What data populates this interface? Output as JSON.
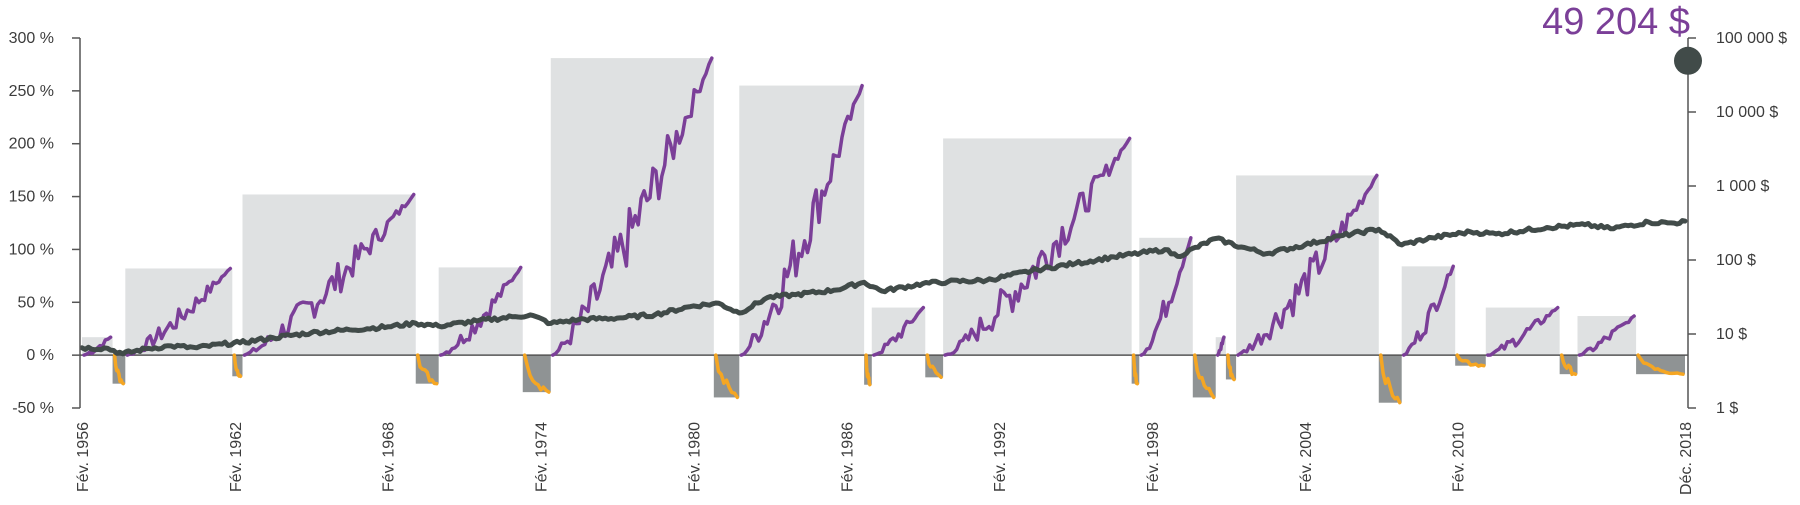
{
  "headline": {
    "value_label": "49 204 $",
    "color": "#7b3f98"
  },
  "colors": {
    "bull_box": "#dfe1e2",
    "bear_box": "#8f9394",
    "bull_line": "#7b3f98",
    "bear_line": "#f5a623",
    "index_line": "#414b49",
    "axis": "#555555"
  },
  "chart_data": {
    "type": "line",
    "x_range": [
      1956,
      2018.92
    ],
    "x_ticks": [
      {
        "x": 1956,
        "label": "Fév. 1956"
      },
      {
        "x": 1962,
        "label": "Fév. 1962"
      },
      {
        "x": 1968,
        "label": "Fév. 1968"
      },
      {
        "x": 1974,
        "label": "Fév. 1974"
      },
      {
        "x": 1980,
        "label": "Fév. 1980"
      },
      {
        "x": 1986,
        "label": "Fév. 1986"
      },
      {
        "x": 1992,
        "label": "Fév. 1992"
      },
      {
        "x": 1998,
        "label": "Fév. 1998"
      },
      {
        "x": 2004,
        "label": "Fév. 2004"
      },
      {
        "x": 2010,
        "label": "Fév. 2010"
      },
      {
        "x": 2018.92,
        "label": "Déc. 2018"
      }
    ],
    "y_left": {
      "range": [
        -50,
        300
      ],
      "ticks": [
        -50,
        0,
        50,
        100,
        150,
        200,
        250,
        300
      ],
      "labels": [
        "-50 %",
        "0 %",
        "50 %",
        "100 %",
        "150 %",
        "200 %",
        "250 %",
        "300 %"
      ]
    },
    "y_right": {
      "scale": "log",
      "range": [
        1,
        100000
      ],
      "ticks": [
        1,
        10,
        100,
        1000,
        10000,
        100000
      ],
      "labels": [
        "1 $",
        "10 $",
        "100 $",
        "1 000 $",
        "10 000 $",
        "100 000 $"
      ]
    },
    "cycles": [
      {
        "type": "bull",
        "start": 1956.0,
        "end": 1957.2,
        "return": 17
      },
      {
        "type": "bear",
        "start": 1957.2,
        "end": 1957.7,
        "return": -27
      },
      {
        "type": "bull",
        "start": 1957.7,
        "end": 1961.9,
        "return": 82
      },
      {
        "type": "bear",
        "start": 1961.9,
        "end": 1962.3,
        "return": -20
      },
      {
        "type": "bull",
        "start": 1962.3,
        "end": 1969.1,
        "return": 152
      },
      {
        "type": "bear",
        "start": 1969.1,
        "end": 1970.0,
        "return": -27
      },
      {
        "type": "bull",
        "start": 1970.0,
        "end": 1973.3,
        "return": 83
      },
      {
        "type": "bear",
        "start": 1973.3,
        "end": 1974.4,
        "return": -35
      },
      {
        "type": "bull",
        "start": 1974.4,
        "end": 1980.8,
        "return": 281
      },
      {
        "type": "bear",
        "start": 1980.8,
        "end": 1981.8,
        "return": -40
      },
      {
        "type": "bull",
        "start": 1981.8,
        "end": 1986.7,
        "return": 255
      },
      {
        "type": "bear",
        "start": 1986.7,
        "end": 1987.0,
        "return": -28
      },
      {
        "type": "bull",
        "start": 1987.0,
        "end": 1989.1,
        "return": 45
      },
      {
        "type": "bear",
        "start": 1989.1,
        "end": 1989.8,
        "return": -21
      },
      {
        "type": "bull",
        "start": 1989.8,
        "end": 1997.2,
        "return": 205
      },
      {
        "type": "bear",
        "start": 1997.2,
        "end": 1997.5,
        "return": -27
      },
      {
        "type": "bull",
        "start": 1997.5,
        "end": 1999.6,
        "return": 111
      },
      {
        "type": "bear",
        "start": 1999.6,
        "end": 2000.5,
        "return": -40
      },
      {
        "type": "bull",
        "start": 2000.5,
        "end": 2000.9,
        "return": 17
      },
      {
        "type": "bear",
        "start": 2000.9,
        "end": 2001.3,
        "return": -23
      },
      {
        "type": "bull",
        "start": 2001.3,
        "end": 2006.9,
        "return": 170
      },
      {
        "type": "bear",
        "start": 2006.9,
        "end": 2007.8,
        "return": -45
      },
      {
        "type": "bull",
        "start": 2007.8,
        "end": 2009.9,
        "return": 84
      },
      {
        "type": "bear",
        "start": 2009.9,
        "end": 2011.1,
        "return": -10
      },
      {
        "type": "bull",
        "start": 2011.1,
        "end": 2014.0,
        "return": 45
      },
      {
        "type": "bear",
        "start": 2014.0,
        "end": 2014.7,
        "return": -18
      },
      {
        "type": "bull",
        "start": 2014.7,
        "end": 2017.0,
        "return": 37
      },
      {
        "type": "bear",
        "start": 2017.0,
        "end": 2018.92,
        "return": -18
      }
    ],
    "index_growth": {
      "scale": "log",
      "points": [
        [
          1956.0,
          6.5
        ],
        [
          1957.0,
          6.4
        ],
        [
          1957.6,
          5.4
        ],
        [
          1958.5,
          6.3
        ],
        [
          1959.5,
          6.9
        ],
        [
          1960.5,
          6.5
        ],
        [
          1961.5,
          7.3
        ],
        [
          1962.2,
          7.6
        ],
        [
          1963.5,
          8.9
        ],
        [
          1965.0,
          10.4
        ],
        [
          1966.5,
          11.4
        ],
        [
          1968.0,
          12.5
        ],
        [
          1969.1,
          14.0
        ],
        [
          1970.0,
          12.8
        ],
        [
          1971.5,
          15.0
        ],
        [
          1973.0,
          17.2
        ],
        [
          1973.6,
          18.1
        ],
        [
          1974.4,
          13.9
        ],
        [
          1975.5,
          15.7
        ],
        [
          1977.0,
          16.4
        ],
        [
          1978.5,
          18.3
        ],
        [
          1980.0,
          24.0
        ],
        [
          1981.0,
          26.0
        ],
        [
          1981.8,
          19.2
        ],
        [
          1982.9,
          31.0
        ],
        [
          1984.0,
          34.0
        ],
        [
          1985.5,
          39.0
        ],
        [
          1986.7,
          50.0
        ],
        [
          1987.4,
          38.0
        ],
        [
          1989.0,
          48.0
        ],
        [
          1990.0,
          51.0
        ],
        [
          1991.5,
          53.0
        ],
        [
          1993.5,
          74.0
        ],
        [
          1995.0,
          90.0
        ],
        [
          1996.5,
          110.0
        ],
        [
          1998.5,
          138.0
        ],
        [
          1999.0,
          112.0
        ],
        [
          2000.5,
          195.0
        ],
        [
          2001.5,
          150.0
        ],
        [
          2002.5,
          122.0
        ],
        [
          2004.0,
          160.0
        ],
        [
          2005.5,
          215.0
        ],
        [
          2006.9,
          260.0
        ],
        [
          2007.8,
          160.0
        ],
        [
          2009.0,
          200.0
        ],
        [
          2010.5,
          240.0
        ],
        [
          2011.5,
          225.0
        ],
        [
          2013.5,
          275.0
        ],
        [
          2015.0,
          300.0
        ],
        [
          2016.0,
          265.0
        ],
        [
          2017.5,
          325.0
        ],
        [
          2018.5,
          315.0
        ],
        [
          2018.92,
          335.0
        ]
      ]
    },
    "final_value": 49204
  }
}
